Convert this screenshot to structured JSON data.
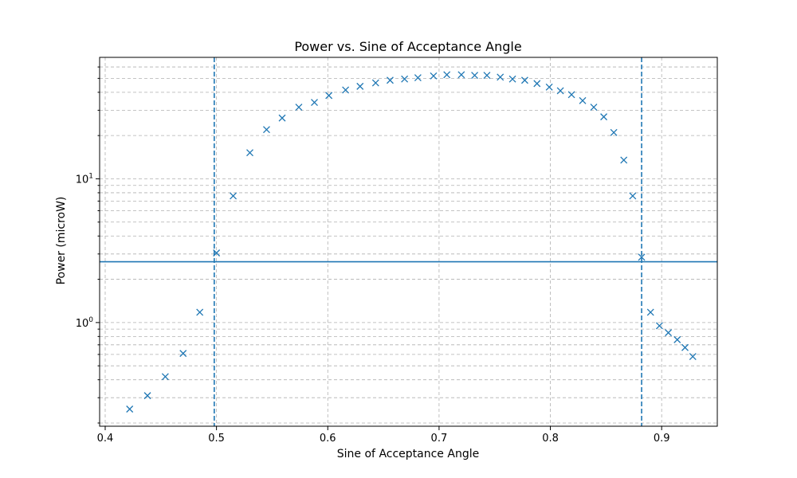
{
  "chart_data": {
    "type": "scatter",
    "title": "Power vs. Sine of Acceptance Angle",
    "xlabel": "Sine of Acceptance Angle",
    "ylabel": "Power (microW)",
    "xlim": [
      0.395,
      0.95
    ],
    "ylim": [
      0.19,
      70
    ],
    "yscale": "log",
    "grid": true,
    "marker": "x",
    "color": "#1f77b4",
    "x_ticks": [
      0.4,
      0.5,
      0.6,
      0.7,
      0.8,
      0.9
    ],
    "x_tick_labels": [
      "0.4",
      "0.5",
      "0.6",
      "0.7",
      "0.8",
      "0.9"
    ],
    "y_major_ticks": [
      1,
      10
    ],
    "y_major_tick_labels": [
      "10^0",
      "10^1"
    ],
    "y_major_label_base": "10",
    "y_major_label_exp": [
      "0",
      "1"
    ],
    "y_minor_ticks": [
      0.2,
      0.3,
      0.4,
      0.5,
      0.6,
      0.7,
      0.8,
      0.9,
      2,
      3,
      4,
      5,
      6,
      7,
      8,
      9,
      20,
      30,
      40,
      50,
      60
    ],
    "vertical_lines": [
      0.498,
      0.882
    ],
    "horizontal_line": 2.65,
    "x": [
      0.422,
      0.438,
      0.454,
      0.47,
      0.485,
      0.5,
      0.515,
      0.53,
      0.545,
      0.559,
      0.574,
      0.588,
      0.601,
      0.616,
      0.629,
      0.643,
      0.656,
      0.669,
      0.681,
      0.695,
      0.707,
      0.72,
      0.732,
      0.743,
      0.755,
      0.766,
      0.777,
      0.788,
      0.799,
      0.809,
      0.819,
      0.829,
      0.839,
      0.848,
      0.857,
      0.866,
      0.874,
      0.882,
      0.89,
      0.898,
      0.906,
      0.914,
      0.921,
      0.928
    ],
    "y": [
      0.25,
      0.31,
      0.42,
      0.61,
      1.18,
      3.05,
      7.6,
      15.2,
      22.0,
      26.5,
      31.5,
      34.0,
      38.0,
      41.5,
      44.0,
      46.5,
      48.5,
      49.5,
      50.5,
      52.0,
      53.0,
      53.0,
      52.5,
      52.5,
      51.0,
      49.5,
      48.5,
      46.0,
      43.5,
      41.0,
      38.5,
      35.0,
      31.5,
      27.0,
      21.0,
      13.5,
      7.6,
      2.85,
      1.18,
      0.95,
      0.85,
      0.76,
      0.67,
      0.58
    ]
  }
}
